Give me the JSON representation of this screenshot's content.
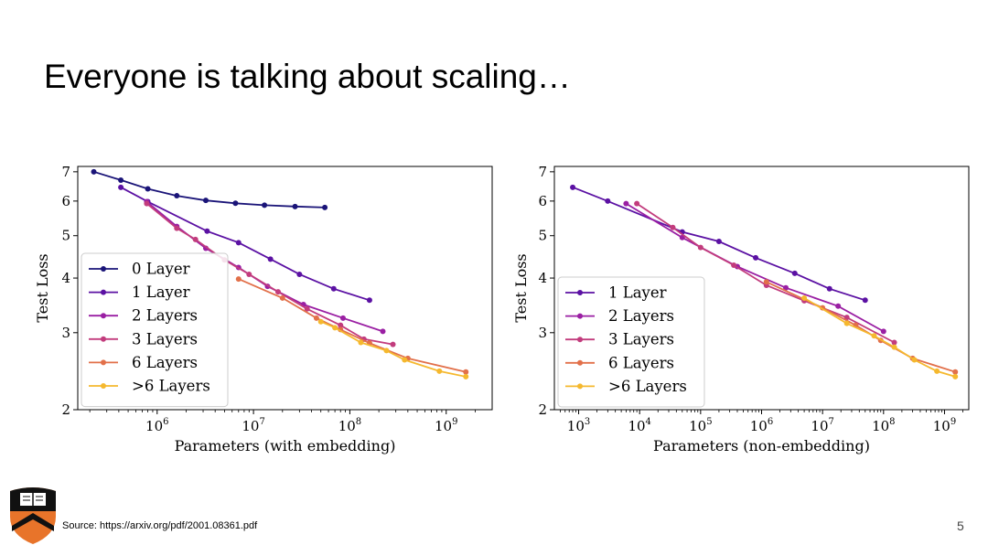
{
  "slide": {
    "title": "Everyone is talking about scaling…",
    "source": "Source: https://arxiv.org/pdf/2001.08361.pdf",
    "page_number": "5"
  },
  "chart_data": [
    {
      "type": "line",
      "title": "",
      "xlabel": "Parameters (with embedding)",
      "ylabel": "Test Loss",
      "xscale": "log",
      "yscale": "log",
      "xlim": [
        150000,
        3000000000
      ],
      "ylim": [
        2,
        7.2
      ],
      "xticks": [
        1000000,
        10000000,
        100000000,
        1000000000
      ],
      "xtick_labels": [
        {
          "base": "10",
          "exp": "6"
        },
        {
          "base": "10",
          "exp": "7"
        },
        {
          "base": "10",
          "exp": "8"
        },
        {
          "base": "10",
          "exp": "9"
        }
      ],
      "yticks": [
        2,
        3,
        4,
        5,
        6,
        7
      ],
      "ytick_labels": [
        "2",
        "3",
        "4",
        "5",
        "6",
        "7"
      ],
      "legend_position": "lower-left",
      "series": [
        {
          "name": "0 Layer",
          "color": "#1a1478",
          "points": [
            [
              220000,
              7.0
            ],
            [
              420000,
              6.7
            ],
            [
              800000,
              6.4
            ],
            [
              1600000,
              6.17
            ],
            [
              3200000,
              6.02
            ],
            [
              6500000,
              5.93
            ],
            [
              13000000,
              5.87
            ],
            [
              27000000,
              5.83
            ],
            [
              55000000,
              5.8
            ]
          ]
        },
        {
          "name": "1 Layer",
          "color": "#5b11a3",
          "points": [
            [
              420000,
              6.45
            ],
            [
              800000,
              5.98
            ],
            [
              3300000,
              5.12
            ],
            [
              7000000,
              4.82
            ],
            [
              15000000,
              4.42
            ],
            [
              30000000,
              4.08
            ],
            [
              68000000,
              3.78
            ],
            [
              160000000,
              3.56
            ]
          ]
        },
        {
          "name": "2 Layers",
          "color": "#9a1fa3",
          "points": [
            [
              780000,
              5.98
            ],
            [
              1600000,
              5.25
            ],
            [
              3200000,
              4.68
            ],
            [
              7000000,
              4.23
            ],
            [
              14000000,
              3.83
            ],
            [
              33000000,
              3.48
            ],
            [
              85000000,
              3.24
            ],
            [
              220000000,
              3.02
            ]
          ]
        },
        {
          "name": "3 Layers",
          "color": "#c23c7d",
          "points": [
            [
              780000,
              5.92
            ],
            [
              1600000,
              5.2
            ],
            [
              2500000,
              4.9
            ],
            [
              5000000,
              4.4
            ],
            [
              9000000,
              4.08
            ],
            [
              18000000,
              3.72
            ],
            [
              36000000,
              3.4
            ],
            [
              80000000,
              3.12
            ],
            [
              140000000,
              2.9
            ],
            [
              280000000,
              2.82
            ]
          ]
        },
        {
          "name": "6 Layers",
          "color": "#e2704a",
          "points": [
            [
              7000000,
              3.98
            ],
            [
              20000000,
              3.6
            ],
            [
              45000000,
              3.24
            ],
            [
              80000000,
              3.05
            ],
            [
              160000000,
              2.84
            ],
            [
              400000000,
              2.62
            ],
            [
              1600000000,
              2.44
            ]
          ]
        },
        {
          "name": ">6 Layers",
          "color": "#f5b82e",
          "points": [
            [
              50000000,
              3.18
            ],
            [
              70000000,
              3.08
            ],
            [
              130000000,
              2.85
            ],
            [
              240000000,
              2.73
            ],
            [
              370000000,
              2.6
            ],
            [
              850000000,
              2.45
            ],
            [
              1600000000,
              2.38
            ]
          ]
        }
      ]
    },
    {
      "type": "line",
      "title": "",
      "xlabel": "Parameters (non-embedding)",
      "ylabel": "Test Loss",
      "xscale": "log",
      "yscale": "log",
      "xlim": [
        400,
        2500000000
      ],
      "ylim": [
        2,
        7.2
      ],
      "xticks": [
        1000,
        10000,
        100000,
        1000000,
        10000000,
        100000000,
        1000000000
      ],
      "xtick_labels": [
        {
          "base": "10",
          "exp": "3"
        },
        {
          "base": "10",
          "exp": "4"
        },
        {
          "base": "10",
          "exp": "5"
        },
        {
          "base": "10",
          "exp": "6"
        },
        {
          "base": "10",
          "exp": "7"
        },
        {
          "base": "10",
          "exp": "8"
        },
        {
          "base": "10",
          "exp": "9"
        }
      ],
      "yticks": [
        2,
        3,
        4,
        5,
        6,
        7
      ],
      "ytick_labels": [
        "2",
        "3",
        "4",
        "5",
        "6",
        "7"
      ],
      "legend_position": "lower-left",
      "series": [
        {
          "name": "1 Layer",
          "color": "#5b11a3",
          "points": [
            [
              800,
              6.45
            ],
            [
              3000,
              6.0
            ],
            [
              50000,
              5.1
            ],
            [
              200000,
              4.85
            ],
            [
              800000,
              4.45
            ],
            [
              3500000,
              4.1
            ],
            [
              13000000,
              3.78
            ],
            [
              50000000,
              3.56
            ]
          ]
        },
        {
          "name": "2 Layers",
          "color": "#9a1fa3",
          "points": [
            [
              6000,
              5.92
            ],
            [
              50000,
              4.95
            ],
            [
              400000,
              4.25
            ],
            [
              2500000,
              3.8
            ],
            [
              18000000,
              3.45
            ],
            [
              100000000,
              3.02
            ]
          ]
        },
        {
          "name": "3 Layers",
          "color": "#c23c7d",
          "points": [
            [
              9000,
              5.92
            ],
            [
              35000,
              5.22
            ],
            [
              100000,
              4.7
            ],
            [
              350000,
              4.28
            ],
            [
              1200000,
              3.85
            ],
            [
              5000000,
              3.55
            ],
            [
              25000000,
              3.25
            ],
            [
              150000000,
              2.85
            ]
          ]
        },
        {
          "name": "6 Layers",
          "color": "#e2704a",
          "points": [
            [
              1200000,
              3.92
            ],
            [
              10000000,
              3.42
            ],
            [
              35000000,
              3.12
            ],
            [
              90000000,
              2.88
            ],
            [
              300000000,
              2.62
            ],
            [
              1500000000,
              2.44
            ]
          ]
        },
        {
          "name": ">6 Layers",
          "color": "#f5b82e",
          "points": [
            [
              5000000,
              3.6
            ],
            [
              25000000,
              3.15
            ],
            [
              70000000,
              2.95
            ],
            [
              150000000,
              2.78
            ],
            [
              320000000,
              2.6
            ],
            [
              750000000,
              2.45
            ],
            [
              1500000000,
              2.38
            ]
          ]
        }
      ]
    }
  ]
}
